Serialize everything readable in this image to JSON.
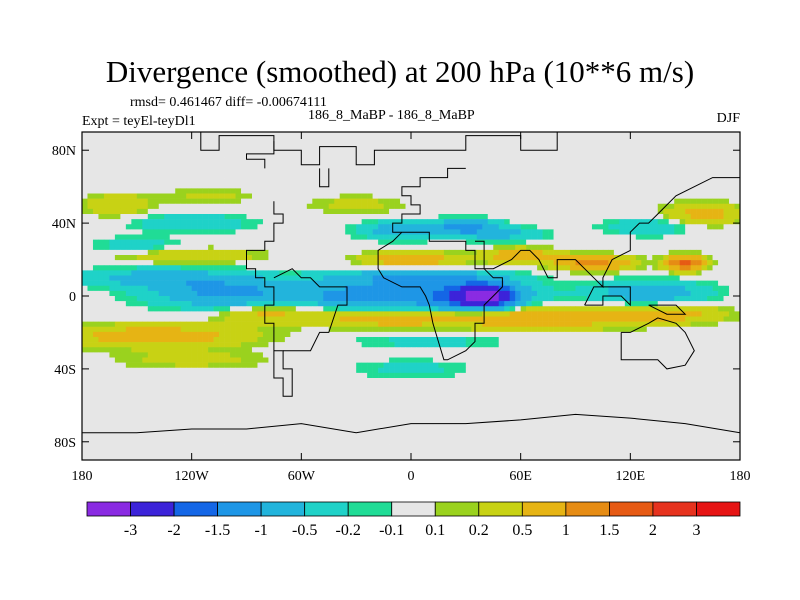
{
  "chart_data": {
    "type": "heatmap",
    "title": "Divergence (smoothed) at 200 hPa (10**6 m/s)",
    "stats_line": "rmsd= 0.461467 diff= -0.00674111",
    "experiment": "Expt = teyEl-teyDl1",
    "case_label": "186_8_MaBP - 186_8_MaBP",
    "season": "DJF",
    "x_range": [
      -180,
      180
    ],
    "y_range": [
      -90,
      90
    ],
    "x_ticks": [
      {
        "value": -180,
        "label": "180"
      },
      {
        "value": -120,
        "label": "120W"
      },
      {
        "value": -60,
        "label": "60W"
      },
      {
        "value": 0,
        "label": "0"
      },
      {
        "value": 60,
        "label": "60E"
      },
      {
        "value": 120,
        "label": "120E"
      },
      {
        "value": 180,
        "label": "180"
      }
    ],
    "y_ticks": [
      {
        "value": 80,
        "label": "80N"
      },
      {
        "value": 40,
        "label": "40N"
      },
      {
        "value": 0,
        "label": "0"
      },
      {
        "value": -40,
        "label": "40S"
      },
      {
        "value": -80,
        "label": "80S"
      }
    ],
    "colorbar": {
      "colors": [
        "#8a2be2",
        "#3c23d9",
        "#1466e6",
        "#1e96e6",
        "#22b4dc",
        "#1fd2c8",
        "#20dc96",
        "#e6e6e6",
        "#9ad21e",
        "#c8d214",
        "#e6b414",
        "#e68c14",
        "#e65a14",
        "#e6321e",
        "#e61414"
      ],
      "labels": [
        "-3",
        "-2",
        "-1.5",
        "-1",
        "-0.5",
        "-0.2",
        "-0.1",
        "0.1",
        "0.2",
        "0.5",
        "1",
        "1.5",
        "2",
        "3"
      ]
    },
    "features": [
      {
        "lon": 40,
        "lat": 0,
        "value": -3.0,
        "sx": 16,
        "sy": 6
      },
      {
        "lon": 15,
        "lat": 0,
        "value": -1.4,
        "sx": 45,
        "sy": 9
      },
      {
        "lon": -100,
        "lat": 2,
        "value": -1.2,
        "sx": 40,
        "sy": 8
      },
      {
        "lon": -35,
        "lat": 0,
        "value": -0.9,
        "sx": 22,
        "sy": 6
      },
      {
        "lon": 130,
        "lat": 2,
        "value": -0.9,
        "sx": 30,
        "sy": 6
      },
      {
        "lon": -140,
        "lat": 10,
        "value": -0.7,
        "sx": 40,
        "sy": 5
      },
      {
        "lon": 0,
        "lat": 10,
        "value": -0.9,
        "sx": 45,
        "sy": 4
      },
      {
        "lon": 30,
        "lat": 38,
        "value": -1.2,
        "sx": 16,
        "sy": 4
      },
      {
        "lon": -5,
        "lat": 36,
        "value": -0.8,
        "sx": 22,
        "sy": 5
      },
      {
        "lon": 50,
        "lat": 34,
        "value": -0.6,
        "sx": 22,
        "sy": 4
      },
      {
        "lon": -120,
        "lat": 40,
        "value": -0.5,
        "sx": 30,
        "sy": 5
      },
      {
        "lon": 130,
        "lat": 38,
        "value": -0.4,
        "sx": 25,
        "sy": 5
      },
      {
        "lon": 10,
        "lat": -25,
        "value": -0.3,
        "sx": 40,
        "sy": 4
      },
      {
        "lon": 0,
        "lat": -40,
        "value": -0.3,
        "sx": 30,
        "sy": 5
      },
      {
        "lon": -140,
        "lat": -22,
        "value": 0.8,
        "sx": 50,
        "sy": 6
      },
      {
        "lon": -10,
        "lat": -12,
        "value": 0.9,
        "sx": 40,
        "sy": 5
      },
      {
        "lon": 70,
        "lat": -12,
        "value": 1.0,
        "sx": 45,
        "sy": 6
      },
      {
        "lon": 140,
        "lat": -10,
        "value": 0.7,
        "sx": 30,
        "sy": 5
      },
      {
        "lon": -80,
        "lat": -10,
        "value": 0.6,
        "sx": 25,
        "sy": 5
      },
      {
        "lon": 100,
        "lat": 18,
        "value": 1.2,
        "sx": 20,
        "sy": 4
      },
      {
        "lon": 150,
        "lat": 18,
        "value": 1.8,
        "sx": 10,
        "sy": 4
      },
      {
        "lon": 0,
        "lat": 20,
        "value": 0.9,
        "sx": 25,
        "sy": 4
      },
      {
        "lon": 60,
        "lat": 22,
        "value": 0.9,
        "sx": 20,
        "sy": 4
      },
      {
        "lon": -120,
        "lat": 22,
        "value": 0.5,
        "sx": 35,
        "sy": 4
      },
      {
        "lon": -160,
        "lat": 50,
        "value": 0.5,
        "sx": 18,
        "sy": 6
      },
      {
        "lon": 160,
        "lat": 45,
        "value": 0.7,
        "sx": 20,
        "sy": 6
      },
      {
        "lon": -30,
        "lat": 50,
        "value": 0.3,
        "sx": 25,
        "sy": 5
      },
      {
        "lon": -110,
        "lat": 55,
        "value": 0.3,
        "sx": 22,
        "sy": 4
      },
      {
        "lon": -120,
        "lat": -35,
        "value": 0.3,
        "sx": 40,
        "sy": 5
      },
      {
        "lon": -150,
        "lat": 28,
        "value": -0.4,
        "sx": 22,
        "sy": 4
      }
    ],
    "coastline": [
      [
        [
          -115,
          90
        ],
        [
          -115,
          80
        ],
        [
          -105,
          80
        ],
        [
          -105,
          88
        ],
        [
          -75,
          88
        ],
        [
          -75,
          80
        ],
        [
          -60,
          80
        ],
        [
          -60,
          72
        ],
        [
          -50,
          72
        ],
        [
          -50,
          82
        ],
        [
          -30,
          82
        ],
        [
          -30,
          72
        ],
        [
          -20,
          72
        ],
        [
          -20,
          80
        ],
        [
          30,
          80
        ],
        [
          30,
          88
        ],
        [
          60,
          88
        ],
        [
          60,
          80
        ],
        [
          80,
          80
        ],
        [
          80,
          90
        ]
      ],
      [
        [
          -75,
          52
        ],
        [
          -75,
          45
        ],
        [
          -70,
          45
        ],
        [
          -70,
          40
        ],
        [
          -75,
          40
        ],
        [
          -75,
          30
        ],
        [
          -80,
          30
        ],
        [
          -80,
          25
        ],
        [
          -90,
          25
        ],
        [
          -90,
          15
        ],
        [
          -85,
          15
        ],
        [
          -85,
          10
        ],
        [
          -80,
          10
        ],
        [
          -80,
          5
        ],
        [
          -75,
          5
        ],
        [
          -75,
          -5
        ],
        [
          -80,
          -5
        ],
        [
          -80,
          -15
        ],
        [
          -75,
          -15
        ],
        [
          -75,
          -30
        ],
        [
          -70,
          -30
        ],
        [
          -70,
          -40
        ],
        [
          -65,
          -40
        ],
        [
          -65,
          -55
        ],
        [
          -70,
          -55
        ],
        [
          -70,
          -45
        ],
        [
          -75,
          -45
        ],
        [
          -75,
          -30
        ],
        [
          -70,
          -30
        ]
      ],
      [
        [
          -70,
          -30
        ],
        [
          -55,
          -30
        ],
        [
          -50,
          -20
        ],
        [
          -45,
          -20
        ],
        [
          -40,
          -5
        ],
        [
          -35,
          -5
        ],
        [
          -35,
          5
        ],
        [
          -50,
          5
        ],
        [
          -55,
          10
        ],
        [
          -60,
          10
        ],
        [
          -65,
          15
        ],
        [
          -75,
          10
        ]
      ],
      [
        [
          -5,
          35
        ],
        [
          -10,
          35
        ],
        [
          -10,
          40
        ],
        [
          -5,
          40
        ],
        [
          -5,
          45
        ],
        [
          5,
          45
        ],
        [
          5,
          50
        ],
        [
          0,
          50
        ],
        [
          0,
          55
        ],
        [
          -5,
          55
        ],
        [
          -5,
          60
        ],
        [
          5,
          60
        ],
        [
          5,
          65
        ],
        [
          20,
          65
        ],
        [
          20,
          70
        ],
        [
          30,
          70
        ]
      ],
      [
        [
          -5,
          35
        ],
        [
          10,
          35
        ],
        [
          10,
          30
        ],
        [
          30,
          30
        ],
        [
          30,
          25
        ],
        [
          35,
          25
        ],
        [
          35,
          15
        ],
        [
          40,
          15
        ],
        [
          45,
          10
        ],
        [
          50,
          10
        ],
        [
          50,
          5
        ],
        [
          45,
          0
        ],
        [
          40,
          -5
        ],
        [
          40,
          -15
        ],
        [
          35,
          -15
        ],
        [
          35,
          -25
        ],
        [
          30,
          -30
        ],
        [
          20,
          -35
        ],
        [
          18,
          -35
        ],
        [
          15,
          -25
        ],
        [
          12,
          -15
        ],
        [
          10,
          -5
        ],
        [
          8,
          0
        ],
        [
          5,
          5
        ],
        [
          -5,
          5
        ],
        [
          -15,
          10
        ],
        [
          -18,
          15
        ],
        [
          -18,
          25
        ],
        [
          -10,
          30
        ],
        [
          -5,
          35
        ]
      ],
      [
        [
          35,
          30
        ],
        [
          40,
          30
        ],
        [
          40,
          15
        ],
        [
          45,
          15
        ],
        [
          55,
          20
        ],
        [
          60,
          25
        ],
        [
          65,
          25
        ],
        [
          70,
          20
        ],
        [
          75,
          10
        ],
        [
          80,
          10
        ],
        [
          80,
          20
        ],
        [
          90,
          20
        ],
        [
          95,
          15
        ],
        [
          100,
          10
        ],
        [
          105,
          5
        ],
        [
          105,
          10
        ],
        [
          110,
          20
        ],
        [
          120,
          25
        ],
        [
          120,
          35
        ],
        [
          125,
          40
        ],
        [
          130,
          40
        ],
        [
          135,
          45
        ],
        [
          140,
          50
        ],
        [
          145,
          55
        ],
        [
          155,
          60
        ],
        [
          165,
          65
        ],
        [
          170,
          65
        ],
        [
          180,
          65
        ]
      ],
      [
        [
          115,
          -20
        ],
        [
          115,
          -35
        ],
        [
          125,
          -35
        ],
        [
          135,
          -35
        ],
        [
          140,
          -40
        ],
        [
          150,
          -38
        ],
        [
          155,
          -30
        ],
        [
          150,
          -20
        ],
        [
          145,
          -15
        ],
        [
          135,
          -12
        ],
        [
          130,
          -15
        ],
        [
          120,
          -20
        ],
        [
          115,
          -20
        ]
      ],
      [
        [
          -180,
          -75
        ],
        [
          -150,
          -75
        ],
        [
          -120,
          -73
        ],
        [
          -90,
          -73
        ],
        [
          -60,
          -70
        ],
        [
          -30,
          -75
        ],
        [
          0,
          -70
        ],
        [
          30,
          -70
        ],
        [
          60,
          -68
        ],
        [
          90,
          -65
        ],
        [
          120,
          -67
        ],
        [
          150,
          -70
        ],
        [
          180,
          -75
        ]
      ],
      [
        [
          -75,
          85
        ],
        [
          -75,
          78
        ],
        [
          -90,
          78
        ],
        [
          -90,
          75
        ],
        [
          -80,
          75
        ],
        [
          -80,
          70
        ]
      ],
      [
        [
          -50,
          70
        ],
        [
          -50,
          60
        ],
        [
          -45,
          60
        ],
        [
          -45,
          70
        ]
      ],
      [
        [
          95,
          -5
        ],
        [
          105,
          -5
        ],
        [
          105,
          0
        ],
        [
          115,
          0
        ],
        [
          120,
          -5
        ],
        [
          120,
          5
        ],
        [
          110,
          5
        ],
        [
          100,
          5
        ],
        [
          95,
          -5
        ]
      ],
      [
        [
          130,
          -5
        ],
        [
          145,
          -5
        ],
        [
          150,
          -10
        ],
        [
          140,
          -10
        ],
        [
          130,
          -5
        ]
      ]
    ]
  }
}
